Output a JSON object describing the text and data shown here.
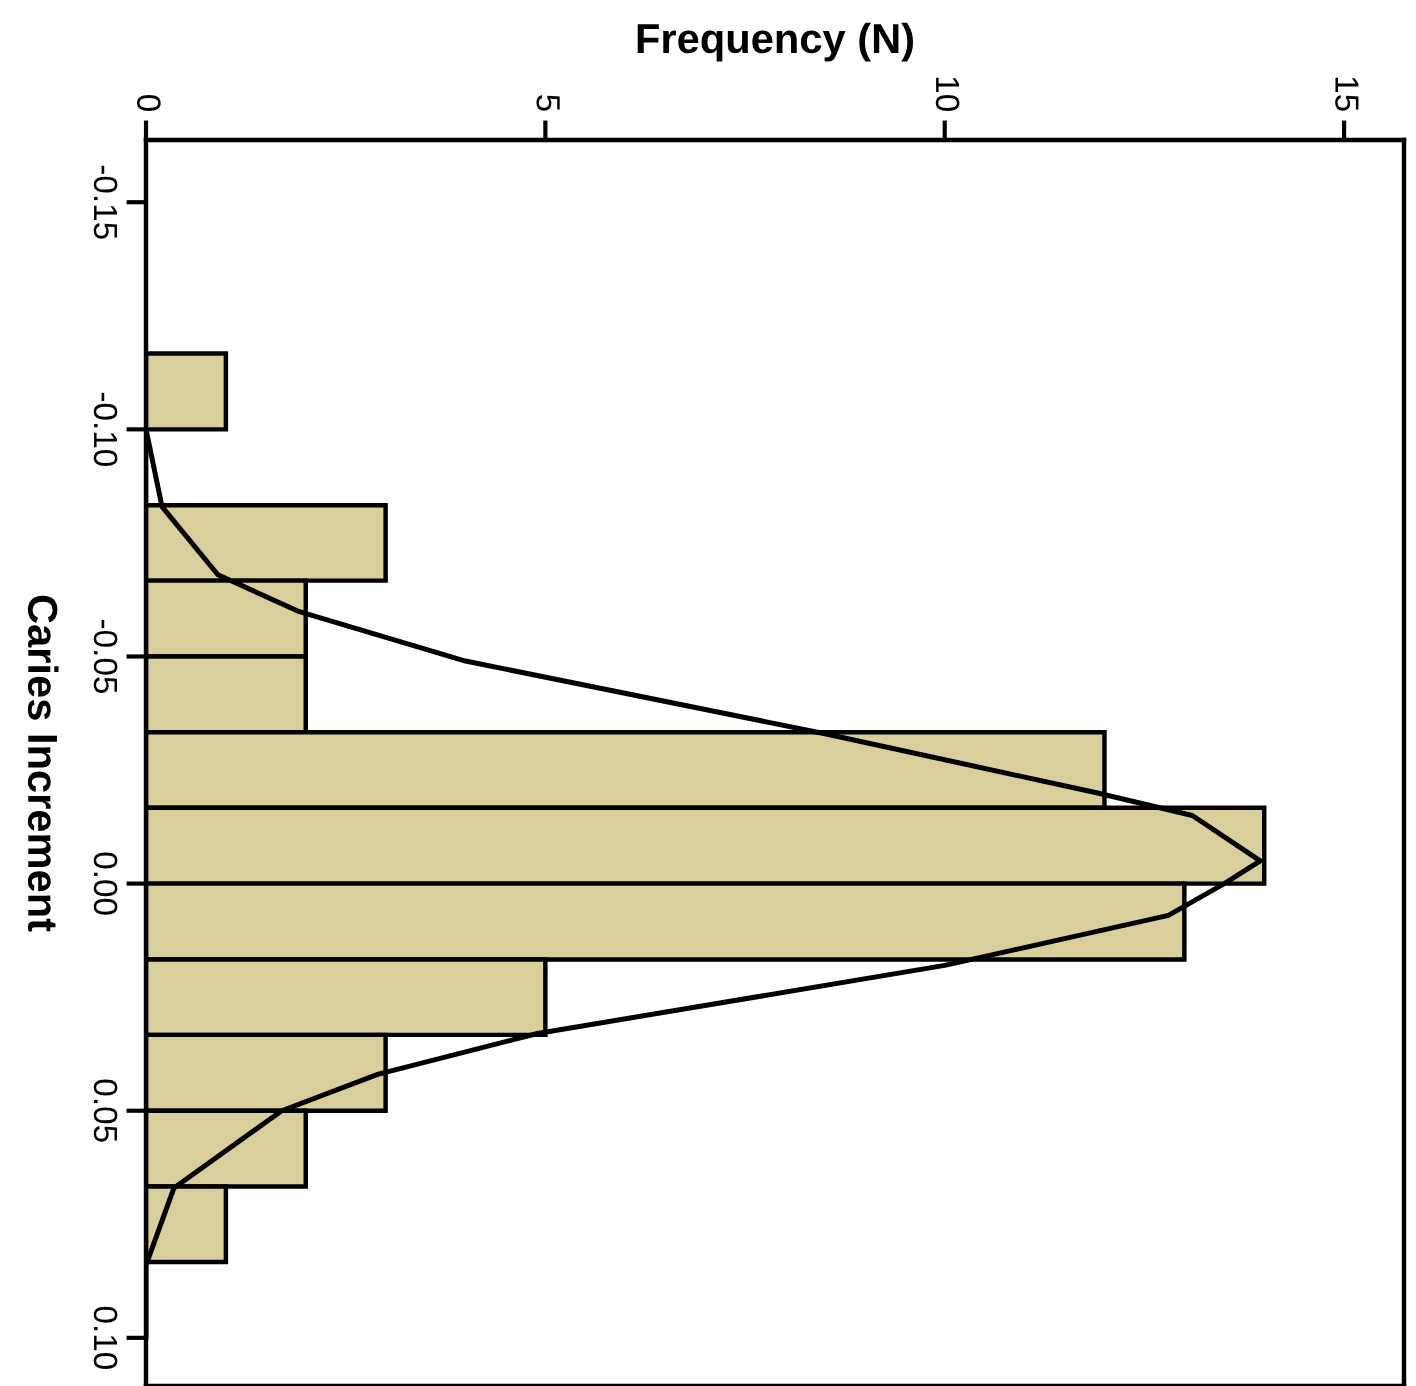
{
  "chart_data": {
    "type": "histogram",
    "orientation": "horizontal",
    "xlabel": "Frequency (N)",
    "ylabel": "Caries Increment",
    "series": [
      {
        "color": "#d8cf9c",
        "bins": [
          -0.1167,
          -0.1,
          -0.0833,
          -0.0667,
          -0.05,
          -0.0333,
          -0.0167,
          0,
          0.0167,
          0.0333,
          0.05,
          0.0667,
          0.0833
        ],
        "values": [
          1,
          0,
          3,
          2,
          2,
          12,
          14,
          13,
          5,
          3,
          2,
          1
        ]
      },
      {
        "type": "line",
        "color": "#000000",
        "x": [
          -0.1,
          -0.083,
          -0.068,
          -0.06,
          -0.049,
          -0.033,
          -0.02,
          -0.015,
          -0.005,
          0.0,
          0.007,
          0.018,
          0.033,
          0.042,
          0.05,
          0.067,
          0.084,
          0.1
        ],
        "values": [
          0,
          0.2,
          0.9,
          1.9,
          4.0,
          8.5,
          11.9,
          13.1,
          13.95,
          13.5,
          12.8,
          10.0,
          4.9,
          2.9,
          1.7,
          0.35,
          0,
          0
        ]
      }
    ],
    "xlim": [
      0,
      15.75
    ],
    "xticks": [
      0,
      5,
      10,
      15
    ],
    "ylim": [
      0.1106,
      -0.1637
    ],
    "yticks": [
      {
        "value": -0.15,
        "label": "-0.15"
      },
      {
        "value": -0.1,
        "label": "-0.10"
      },
      {
        "value": -0.05,
        "label": "-0.05"
      },
      {
        "value": 0,
        "label": "0.00"
      },
      {
        "value": 0.05,
        "label": "0.05"
      },
      {
        "value": 0.1,
        "label": "0.10"
      }
    ],
    "grid": false,
    "legend": false,
    "line_style": "solid",
    "marker": "none"
  }
}
